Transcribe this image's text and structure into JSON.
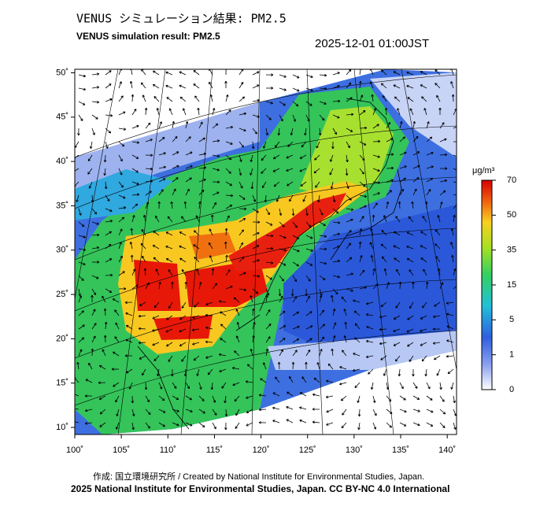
{
  "title": "VENUS シミュレーション結果: PM2.5",
  "subtitle": "VENUS simulation result: PM2.5",
  "timestamp": "2025-12-01 01:00JST",
  "map": {
    "xlim": [
      100,
      141
    ],
    "ylim": [
      9.2,
      50.4
    ],
    "xticks": [
      {
        "value": 100,
        "label": "100˚"
      },
      {
        "value": 105,
        "label": "105˚"
      },
      {
        "value": 110,
        "label": "110˚"
      },
      {
        "value": 115,
        "label": "115˚"
      },
      {
        "value": 120,
        "label": "120˚"
      },
      {
        "value": 125,
        "label": "125˚"
      },
      {
        "value": 130,
        "label": "130˚"
      },
      {
        "value": 135,
        "label": "135˚"
      },
      {
        "value": 140,
        "label": "140˚"
      }
    ],
    "yticks": [
      {
        "value": 50,
        "label": "50˚"
      },
      {
        "value": 45,
        "label": "45˚"
      },
      {
        "value": 40,
        "label": "40˚"
      },
      {
        "value": 35,
        "label": "35˚"
      },
      {
        "value": 30,
        "label": "30˚"
      },
      {
        "value": 25,
        "label": "25˚"
      },
      {
        "value": 20,
        "label": "20˚"
      },
      {
        "value": 15,
        "label": "15˚"
      },
      {
        "value": 10,
        "label": "10˚"
      }
    ]
  },
  "colorbar": {
    "unit": "μg/m³",
    "ticks": [
      70,
      50,
      35,
      15,
      5,
      1,
      0
    ]
  },
  "credits": [
    "作成: 国立環境研究所 / Created by National Institute for Environmental Studies, Japan.",
    "2025 National Institute for Environmental Studies, Japan. CC BY-NC 4.0 International"
  ]
}
